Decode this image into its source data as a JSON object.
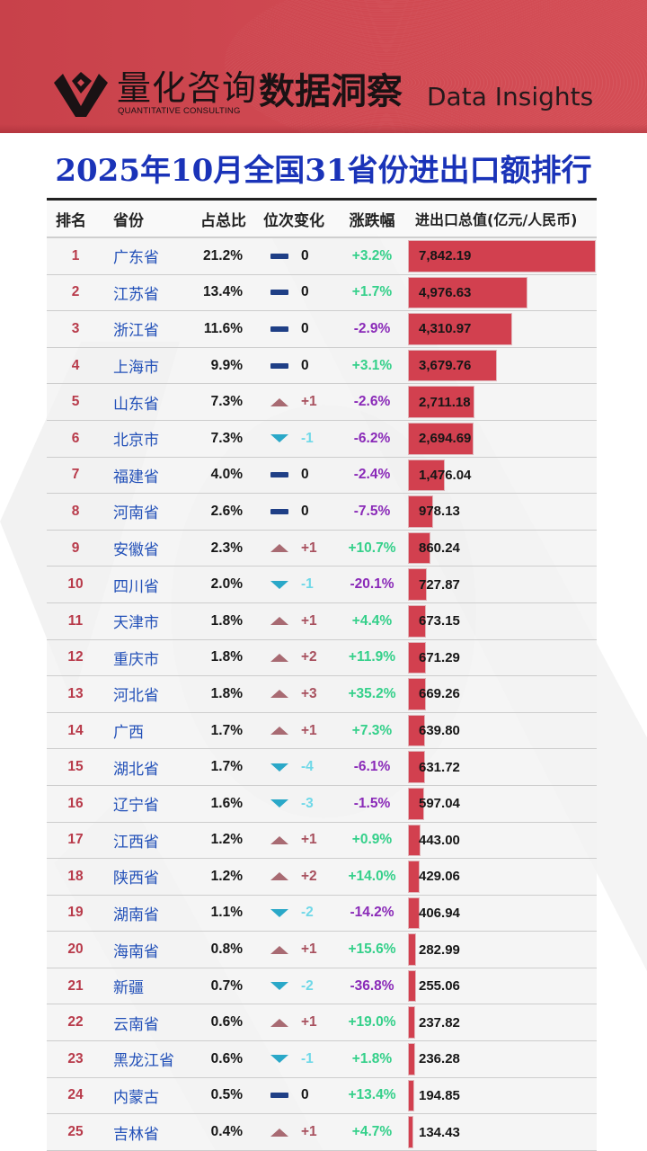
{
  "header": {
    "brand_cn": "量化咨询",
    "brand_en": "QUANTITATIVE CONSULTING",
    "section_cn": "数据洞察",
    "section_en": "Data Insights"
  },
  "title": "2025年10月全国31省份进出口额排行",
  "colors": {
    "banner": "#cf4851",
    "title": "#1a33b8",
    "bar": "#d2404f",
    "rank": "#b83a4a",
    "province": "#2250b8",
    "up_icon": "#a86a72",
    "down_icon": "#2aa8c8",
    "flat_icon": "#1f3f86",
    "up_text": "#a8505e",
    "down_text": "#6fd8e8",
    "pct_pos": "#34d08a",
    "pct_neg": "#8a2ab8"
  },
  "table": {
    "columns": [
      "排名",
      "省份",
      "占总比",
      "位次变化",
      "涨跌幅",
      "进出口总值(亿元/人民币)"
    ],
    "rows": [
      {
        "rank": "1",
        "province": "广东省",
        "share": "21.2%",
        "dir": "flat",
        "change": "0",
        "pct": "+3.2%",
        "value": "7,842.19",
        "num": 7842.19
      },
      {
        "rank": "2",
        "province": "江苏省",
        "share": "13.4%",
        "dir": "flat",
        "change": "0",
        "pct": "+1.7%",
        "value": "4,976.63",
        "num": 4976.63
      },
      {
        "rank": "3",
        "province": "浙江省",
        "share": "11.6%",
        "dir": "flat",
        "change": "0",
        "pct": "-2.9%",
        "value": "4,310.97",
        "num": 4310.97
      },
      {
        "rank": "4",
        "province": "上海市",
        "share": "9.9%",
        "dir": "flat",
        "change": "0",
        "pct": "+3.1%",
        "value": "3,679.76",
        "num": 3679.76
      },
      {
        "rank": "5",
        "province": "山东省",
        "share": "7.3%",
        "dir": "up",
        "change": "+1",
        "pct": "-2.6%",
        "value": "2,711.18",
        "num": 2711.18
      },
      {
        "rank": "6",
        "province": "北京市",
        "share": "7.3%",
        "dir": "down",
        "change": "-1",
        "pct": "-6.2%",
        "value": "2,694.69",
        "num": 2694.69
      },
      {
        "rank": "7",
        "province": "福建省",
        "share": "4.0%",
        "dir": "flat",
        "change": "0",
        "pct": "-2.4%",
        "value": "1,476.04",
        "num": 1476.04
      },
      {
        "rank": "8",
        "province": "河南省",
        "share": "2.6%",
        "dir": "flat",
        "change": "0",
        "pct": "-7.5%",
        "value": "978.13",
        "num": 978.13
      },
      {
        "rank": "9",
        "province": "安徽省",
        "share": "2.3%",
        "dir": "up",
        "change": "+1",
        "pct": "+10.7%",
        "value": "860.24",
        "num": 860.24
      },
      {
        "rank": "10",
        "province": "四川省",
        "share": "2.0%",
        "dir": "down",
        "change": "-1",
        "pct": "-20.1%",
        "value": "727.87",
        "num": 727.87
      },
      {
        "rank": "11",
        "province": "天津市",
        "share": "1.8%",
        "dir": "up",
        "change": "+1",
        "pct": "+4.4%",
        "value": "673.15",
        "num": 673.15
      },
      {
        "rank": "12",
        "province": "重庆市",
        "share": "1.8%",
        "dir": "up",
        "change": "+2",
        "pct": "+11.9%",
        "value": "671.29",
        "num": 671.29
      },
      {
        "rank": "13",
        "province": "河北省",
        "share": "1.8%",
        "dir": "up",
        "change": "+3",
        "pct": "+35.2%",
        "value": "669.26",
        "num": 669.26
      },
      {
        "rank": "14",
        "province": "广西",
        "share": "1.7%",
        "dir": "up",
        "change": "+1",
        "pct": "+7.3%",
        "value": "639.80",
        "num": 639.8
      },
      {
        "rank": "15",
        "province": "湖北省",
        "share": "1.7%",
        "dir": "down",
        "change": "-4",
        "pct": "-6.1%",
        "value": "631.72",
        "num": 631.72
      },
      {
        "rank": "16",
        "province": "辽宁省",
        "share": "1.6%",
        "dir": "down",
        "change": "-3",
        "pct": "-1.5%",
        "value": "597.04",
        "num": 597.04
      },
      {
        "rank": "17",
        "province": "江西省",
        "share": "1.2%",
        "dir": "up",
        "change": "+1",
        "pct": "+0.9%",
        "value": "443.00",
        "num": 443.0
      },
      {
        "rank": "18",
        "province": "陕西省",
        "share": "1.2%",
        "dir": "up",
        "change": "+2",
        "pct": "+14.0%",
        "value": "429.06",
        "num": 429.06
      },
      {
        "rank": "19",
        "province": "湖南省",
        "share": "1.1%",
        "dir": "down",
        "change": "-2",
        "pct": "-14.2%",
        "value": "406.94",
        "num": 406.94
      },
      {
        "rank": "20",
        "province": "海南省",
        "share": "0.8%",
        "dir": "up",
        "change": "+1",
        "pct": "+15.6%",
        "value": "282.99",
        "num": 282.99
      },
      {
        "rank": "21",
        "province": "新疆",
        "share": "0.7%",
        "dir": "down",
        "change": "-2",
        "pct": "-36.8%",
        "value": "255.06",
        "num": 255.06
      },
      {
        "rank": "22",
        "province": "云南省",
        "share": "0.6%",
        "dir": "up",
        "change": "+1",
        "pct": "+19.0%",
        "value": "237.82",
        "num": 237.82
      },
      {
        "rank": "23",
        "province": "黑龙江省",
        "share": "0.6%",
        "dir": "down",
        "change": "-1",
        "pct": "+1.8%",
        "value": "236.28",
        "num": 236.28
      },
      {
        "rank": "24",
        "province": "内蒙古",
        "share": "0.5%",
        "dir": "flat",
        "change": "0",
        "pct": "+13.4%",
        "value": "194.85",
        "num": 194.85
      },
      {
        "rank": "25",
        "province": "吉林省",
        "share": "0.4%",
        "dir": "up",
        "change": "+1",
        "pct": "+4.7%",
        "value": "134.43",
        "num": 134.43
      }
    ]
  },
  "chart_data": {
    "type": "table",
    "title": "2025年10月全国31省份进出口额排行",
    "xlabel": "",
    "ylabel": "进出口总值(亿元/人民币)",
    "columns": [
      "排名",
      "省份",
      "占总比",
      "位次变化",
      "涨跌幅",
      "进出口总值(亿元/人民币)"
    ],
    "categories": [
      "广东省",
      "江苏省",
      "浙江省",
      "上海市",
      "山东省",
      "北京市",
      "福建省",
      "河南省",
      "安徽省",
      "四川省",
      "天津市",
      "重庆市",
      "河北省",
      "广西",
      "湖北省",
      "辽宁省",
      "江西省",
      "陕西省",
      "湖南省",
      "海南省",
      "新疆",
      "云南省",
      "黑龙江省",
      "内蒙古",
      "吉林省"
    ],
    "series": [
      {
        "name": "进出口总值(亿元/人民币)",
        "values": [
          7842.19,
          4976.63,
          4310.97,
          3679.76,
          2711.18,
          2694.69,
          1476.04,
          978.13,
          860.24,
          727.87,
          673.15,
          671.29,
          669.26,
          639.8,
          631.72,
          597.04,
          443.0,
          429.06,
          406.94,
          282.99,
          255.06,
          237.82,
          236.28,
          194.85,
          134.43
        ]
      },
      {
        "name": "占总比(%)",
        "values": [
          21.2,
          13.4,
          11.6,
          9.9,
          7.3,
          7.3,
          4.0,
          2.6,
          2.3,
          2.0,
          1.8,
          1.8,
          1.8,
          1.7,
          1.7,
          1.6,
          1.2,
          1.2,
          1.1,
          0.8,
          0.7,
          0.6,
          0.6,
          0.5,
          0.4
        ]
      },
      {
        "name": "位次变化",
        "values": [
          0,
          0,
          0,
          0,
          1,
          -1,
          0,
          0,
          1,
          -1,
          1,
          2,
          3,
          1,
          -4,
          -3,
          1,
          2,
          -2,
          1,
          -2,
          1,
          -1,
          0,
          1
        ]
      },
      {
        "name": "涨跌幅(%)",
        "values": [
          3.2,
          1.7,
          -2.9,
          3.1,
          -2.6,
          -6.2,
          -2.4,
          -7.5,
          10.7,
          -20.1,
          4.4,
          11.9,
          35.2,
          7.3,
          -6.1,
          -1.5,
          0.9,
          14.0,
          -14.2,
          15.6,
          -36.8,
          19.0,
          1.8,
          13.4,
          4.7
        ]
      }
    ]
  }
}
